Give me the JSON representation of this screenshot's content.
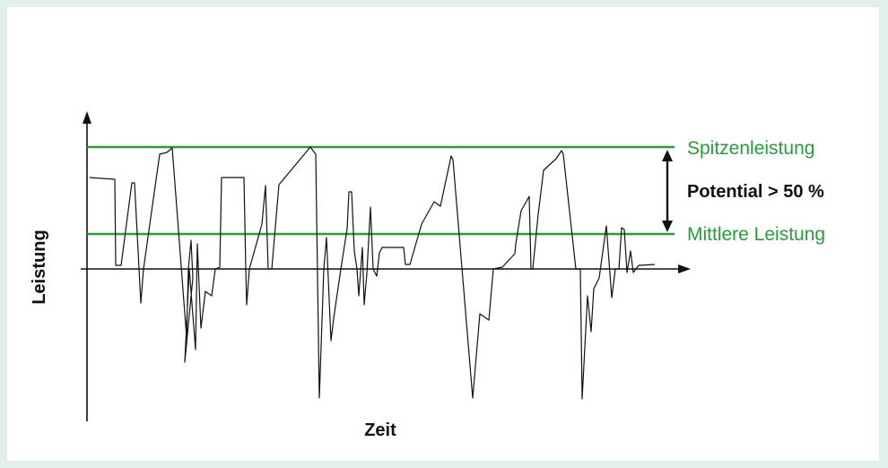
{
  "labels": {
    "y_axis": "Leistung",
    "x_axis": "Zeit",
    "peak": "Spitzenleistung",
    "potential": "Potential > 50 %",
    "average": "Mittlere Leistung"
  },
  "colors": {
    "background": "#e3efeb",
    "panel": "#ffffff",
    "reference_lines": "#2a9a3c",
    "signal": "#111111"
  }
}
